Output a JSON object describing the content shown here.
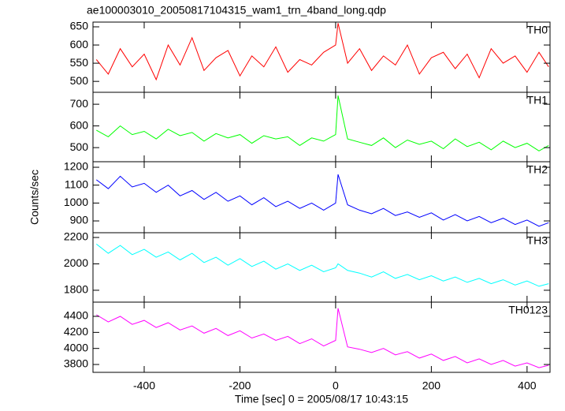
{
  "title": "ae100003010_20050817104315_wam1_trn_4band_long.qdp",
  "y_label": "Counts/sec",
  "x_label": "Time [sec] 0 = 2005/08/17 10:43:15",
  "chart_data": [
    {
      "type": "line",
      "x": [
        -500,
        -475,
        -450,
        -425,
        -400,
        -375,
        -350,
        -325,
        -300,
        -275,
        -250,
        -225,
        -200,
        -175,
        -150,
        -125,
        -100,
        -75,
        -50,
        -25,
        0,
        5,
        25,
        50,
        75,
        100,
        125,
        150,
        175,
        200,
        225,
        250,
        275,
        300,
        325,
        350,
        375,
        400,
        425,
        445
      ],
      "series": [
        {
          "name": "TH0",
          "color": "#ff0000",
          "values": [
            560,
            520,
            590,
            540,
            575,
            505,
            600,
            545,
            620,
            530,
            565,
            585,
            515,
            570,
            540,
            595,
            525,
            560,
            545,
            580,
            600,
            660,
            550,
            590,
            530,
            570,
            545,
            600,
            520,
            565,
            580,
            535,
            575,
            510,
            590,
            550,
            570,
            525,
            580,
            540
          ]
        }
      ],
      "xlim": [
        -507,
        448
      ],
      "xticks": [
        -400,
        -200,
        0,
        200,
        400
      ],
      "ylim": [
        470,
        663
      ],
      "yticks": [
        500,
        550,
        600,
        650
      ]
    },
    {
      "type": "line",
      "x": [
        -500,
        -475,
        -450,
        -425,
        -400,
        -375,
        -350,
        -325,
        -300,
        -275,
        -250,
        -225,
        -200,
        -175,
        -150,
        -125,
        -100,
        -75,
        -50,
        -25,
        0,
        5,
        25,
        50,
        75,
        100,
        125,
        150,
        175,
        200,
        225,
        250,
        275,
        300,
        325,
        350,
        375,
        400,
        425,
        445
      ],
      "series": [
        {
          "name": "TH1",
          "color": "#00ff00",
          "values": [
            580,
            550,
            600,
            560,
            575,
            540,
            585,
            555,
            570,
            530,
            565,
            545,
            560,
            520,
            555,
            540,
            550,
            510,
            545,
            530,
            560,
            740,
            540,
            525,
            510,
            545,
            500,
            535,
            515,
            530,
            495,
            540,
            505,
            525,
            490,
            530,
            500,
            520,
            485,
            510
          ]
        }
      ],
      "xlim": [
        -507,
        448
      ],
      "xticks": [
        -400,
        -200,
        0,
        200,
        400
      ],
      "ylim": [
        435,
        755
      ],
      "yticks": [
        500,
        600,
        700
      ]
    },
    {
      "type": "line",
      "x": [
        -500,
        -475,
        -450,
        -425,
        -400,
        -375,
        -350,
        -325,
        -300,
        -275,
        -250,
        -225,
        -200,
        -175,
        -150,
        -125,
        -100,
        -75,
        -50,
        -25,
        0,
        5,
        25,
        50,
        75,
        100,
        125,
        150,
        175,
        200,
        225,
        250,
        275,
        300,
        325,
        350,
        375,
        400,
        425,
        445
      ],
      "series": [
        {
          "name": "TH2",
          "color": "#0000ff",
          "values": [
            1130,
            1080,
            1150,
            1090,
            1110,
            1060,
            1100,
            1040,
            1070,
            1020,
            1060,
            1010,
            1040,
            990,
            1030,
            980,
            1010,
            970,
            1000,
            960,
            1000,
            1160,
            990,
            960,
            940,
            970,
            930,
            950,
            920,
            945,
            905,
            935,
            900,
            925,
            890,
            915,
            880,
            905,
            870,
            890
          ]
        }
      ],
      "xlim": [
        -507,
        448
      ],
      "xticks": [
        -400,
        -200,
        0,
        200,
        400
      ],
      "ylim": [
        834,
        1231
      ],
      "yticks": [
        900,
        1000,
        1100,
        1200
      ]
    },
    {
      "type": "line",
      "x": [
        -500,
        -475,
        -450,
        -425,
        -400,
        -375,
        -350,
        -325,
        -300,
        -275,
        -250,
        -225,
        -200,
        -175,
        -150,
        -125,
        -100,
        -75,
        -50,
        -25,
        0,
        5,
        25,
        50,
        75,
        100,
        125,
        150,
        175,
        200,
        225,
        250,
        275,
        300,
        325,
        350,
        375,
        400,
        425,
        445
      ],
      "series": [
        {
          "name": "TH3",
          "color": "#00ffff",
          "values": [
            2150,
            2080,
            2140,
            2070,
            2110,
            2050,
            2090,
            2030,
            2080,
            2010,
            2050,
            1990,
            2040,
            1980,
            2020,
            1960,
            2000,
            1950,
            1990,
            1940,
            1970,
            2000,
            1950,
            1930,
            1900,
            1940,
            1890,
            1920,
            1880,
            1910,
            1870,
            1900,
            1860,
            1890,
            1850,
            1880,
            1840,
            1870,
            1830,
            1850
          ]
        }
      ],
      "xlim": [
        -507,
        448
      ],
      "xticks": [
        -400,
        -200,
        0,
        200,
        400
      ],
      "ylim": [
        1710,
        2236
      ],
      "yticks": [
        1800,
        2000,
        2200
      ]
    },
    {
      "type": "line",
      "x": [
        -500,
        -475,
        -450,
        -425,
        -400,
        -375,
        -350,
        -325,
        -300,
        -275,
        -250,
        -225,
        -200,
        -175,
        -150,
        -125,
        -100,
        -75,
        -50,
        -25,
        0,
        5,
        25,
        50,
        75,
        100,
        125,
        150,
        175,
        200,
        225,
        250,
        275,
        300,
        325,
        350,
        375,
        400,
        425,
        445
      ],
      "series": [
        {
          "name": "TH0123",
          "color": "#ff00ff",
          "values": [
            4420,
            4330,
            4400,
            4300,
            4350,
            4260,
            4320,
            4230,
            4280,
            4190,
            4250,
            4160,
            4220,
            4130,
            4180,
            4100,
            4150,
            4060,
            4120,
            4030,
            4100,
            4500,
            4020,
            3990,
            3950,
            4000,
            3920,
            3960,
            3880,
            3930,
            3850,
            3900,
            3820,
            3870,
            3800,
            3850,
            3780,
            3820,
            3760,
            3790
          ]
        }
      ],
      "xlim": [
        -507,
        448
      ],
      "xticks": [
        -400,
        -200,
        0,
        200,
        400
      ],
      "ylim": [
        3702,
        4577
      ],
      "yticks": [
        3800,
        4000,
        4200,
        4400
      ]
    }
  ]
}
